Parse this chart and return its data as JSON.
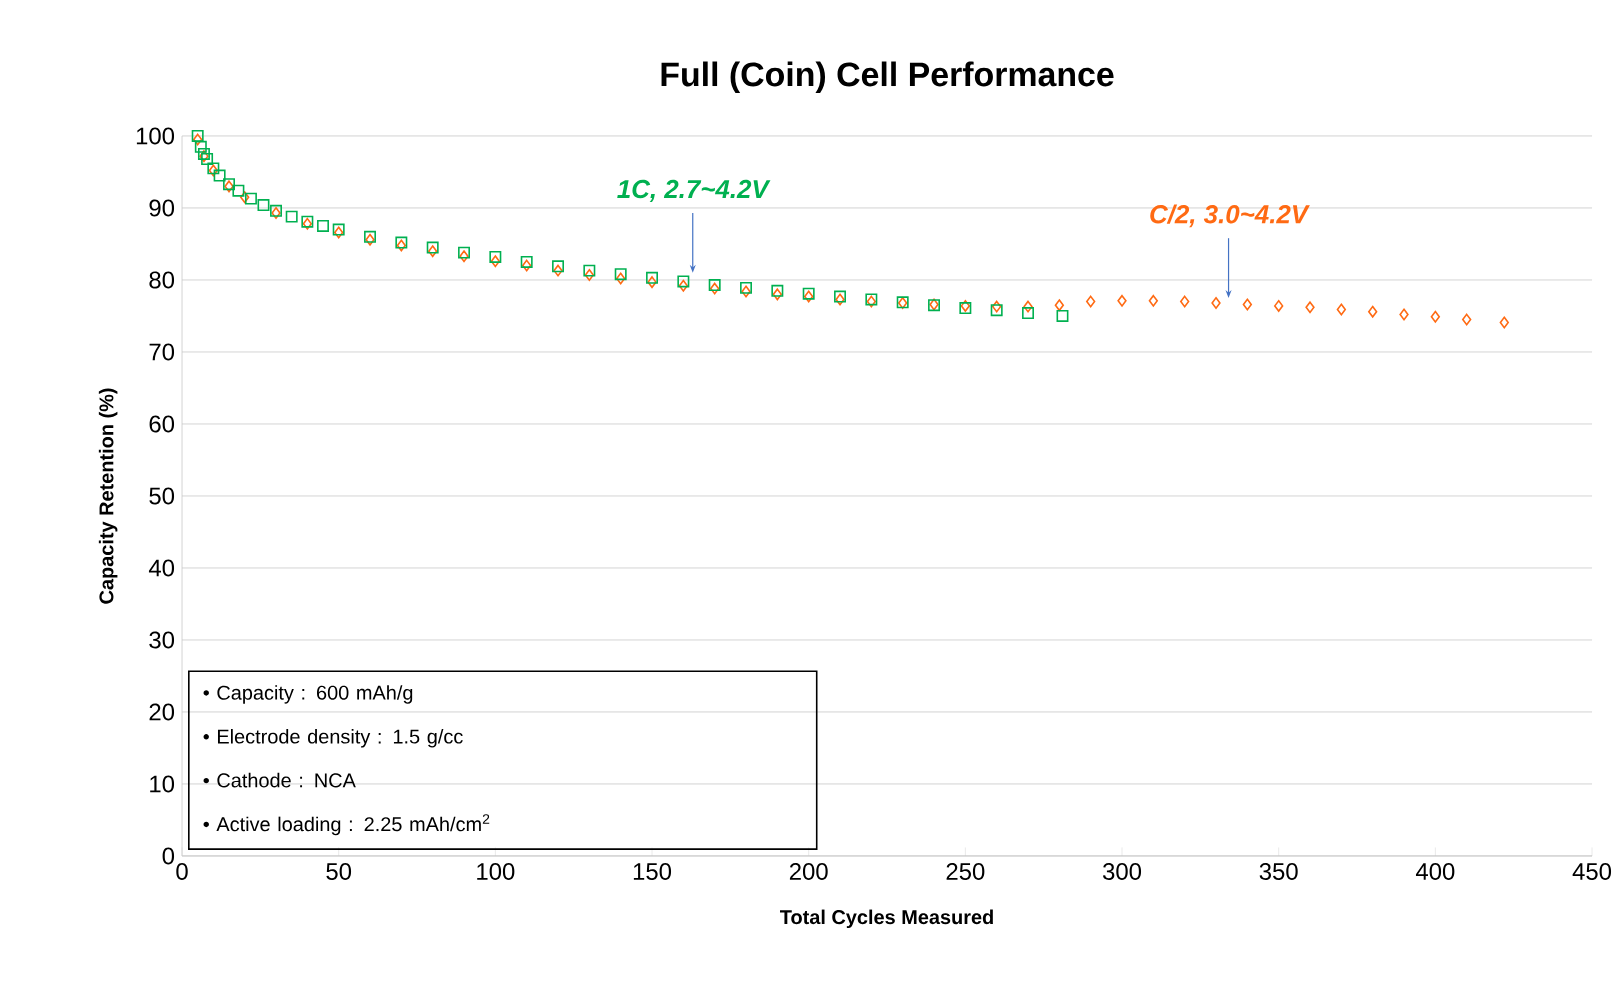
{
  "chart_data": {
    "type": "scatter",
    "title": "Full (Coin) Cell Performance",
    "xlabel": "Total Cycles Measured",
    "ylabel": "Capacity Retention (%)",
    "xlim": [
      0,
      450
    ],
    "xticks": [
      0,
      50,
      100,
      150,
      200,
      250,
      300,
      350,
      400,
      450
    ],
    "ylim": [
      0,
      100
    ],
    "yticks": [
      0,
      10,
      20,
      30,
      40,
      50,
      60,
      70,
      80,
      90,
      100
    ],
    "grid": "y",
    "legend": false,
    "series": [
      {
        "color": "#ff6a13",
        "marker": "diamond",
        "x": [
          5,
          7,
          10,
          15,
          20,
          30,
          40,
          50,
          60,
          70,
          80,
          90,
          100,
          110,
          120,
          130,
          140,
          150,
          160,
          170,
          180,
          190,
          200,
          210,
          220,
          230,
          240,
          250,
          260,
          270,
          280,
          290,
          300,
          310,
          320,
          330,
          340,
          350,
          360,
          370,
          380,
          390,
          400,
          410,
          422
        ],
        "values": [
          99.5,
          97.2,
          95.2,
          93,
          91.5,
          89.3,
          87.8,
          86.6,
          85.6,
          84.8,
          84,
          83.3,
          82.6,
          82,
          81.3,
          80.7,
          80.2,
          79.7,
          79.2,
          78.8,
          78.4,
          78,
          77.7,
          77.3,
          77,
          76.8,
          76.6,
          76.4,
          76.3,
          76.3,
          76.5,
          77,
          77.1,
          77.1,
          77,
          76.8,
          76.6,
          76.4,
          76.2,
          75.9,
          75.6,
          75.2,
          74.9,
          74.5,
          74.1
        ]
      },
      {
        "color": "#00b050",
        "marker": "square",
        "x": [
          5,
          6,
          7,
          8,
          10,
          12,
          15,
          18,
          22,
          26,
          30,
          35,
          40,
          45,
          50,
          60,
          70,
          80,
          90,
          100,
          110,
          120,
          130,
          140,
          150,
          160,
          170,
          180,
          190,
          200,
          210,
          220,
          230,
          240,
          250,
          260,
          270,
          281
        ],
        "values": [
          100,
          98.5,
          97.5,
          96.8,
          95.5,
          94.5,
          93.3,
          92.4,
          91.3,
          90.4,
          89.6,
          88.8,
          88.1,
          87.5,
          87,
          86,
          85.2,
          84.5,
          83.8,
          83.2,
          82.5,
          81.9,
          81.3,
          80.8,
          80.3,
          79.8,
          79.3,
          78.9,
          78.5,
          78.1,
          77.7,
          77.3,
          76.9,
          76.5,
          76.1,
          75.8,
          75.4,
          75
        ]
      }
    ],
    "annotations": [
      {
        "text": "C/2, 3.0~4.2V",
        "x": 334,
        "y": 77.5
      },
      {
        "text": "1C, 2.7~4.2V",
        "x": 163,
        "y": 81
      },
      "• Capacity : 600 mAh/g",
      "• Electrode density : 1.5 g/cc",
      "• Cathode : NCA",
      "• Active loading : 2.25 mAh/cm$^{2}$"
    ]
  }
}
